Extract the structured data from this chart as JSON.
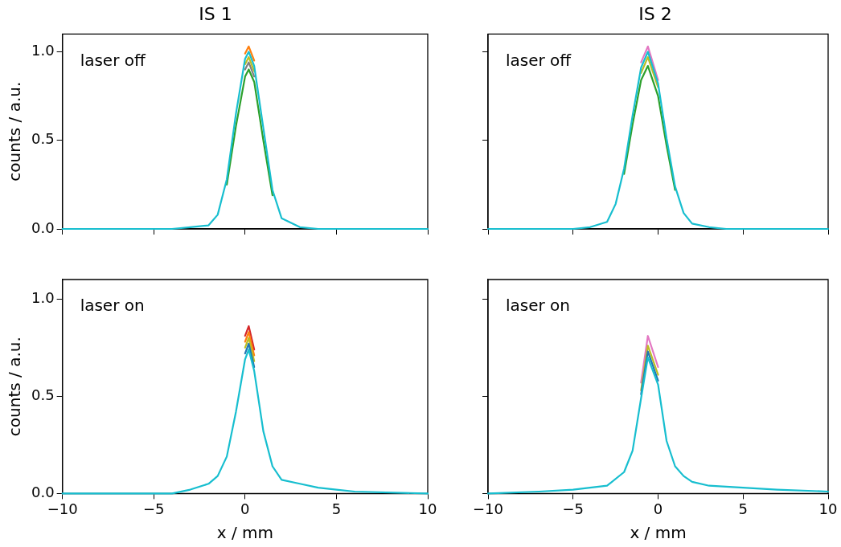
{
  "chart_data": [
    {
      "type": "line",
      "title": "IS 1",
      "ylabel": "counts / a.u.",
      "annotations": [
        "laser off"
      ],
      "xlim": [
        -10,
        10
      ],
      "xticks": [
        -10,
        -5,
        0,
        5,
        10
      ],
      "ylim": [
        0,
        1.1
      ],
      "yticks": [
        {
          "value": 0,
          "label": "0.0"
        },
        {
          "value": 0.5,
          "label": "0.5"
        },
        {
          "value": 1,
          "label": "1.0"
        }
      ],
      "tick_labels": "y",
      "grid": false,
      "legend": false,
      "marker": "none",
      "line_style": "solid",
      "x": [
        -10,
        -4,
        -3,
        -2,
        -1.5,
        -1,
        -0.5,
        0,
        0.2,
        0.5,
        1,
        1.5,
        2,
        3,
        4,
        10
      ],
      "series": [
        {
          "color": "#17becf",
          "values": [
            0,
            0,
            0.01,
            0.02,
            0.08,
            0.28,
            0.65,
            0.96,
            1.0,
            0.92,
            0.57,
            0.22,
            0.06,
            0.01,
            0,
            0
          ]
        },
        {
          "color": "#ff7f0e",
          "values": [
            null,
            null,
            null,
            null,
            null,
            null,
            null,
            0.99,
            1.03,
            0.95,
            null,
            null,
            null,
            null,
            null,
            null
          ]
        },
        {
          "color": "#bcbd22",
          "values": [
            null,
            null,
            null,
            null,
            null,
            null,
            null,
            0.93,
            0.97,
            0.89,
            null,
            null,
            null,
            null,
            null,
            null
          ]
        },
        {
          "color": "#7f7f7f",
          "values": [
            null,
            null,
            null,
            null,
            null,
            null,
            null,
            0.9,
            0.94,
            0.86,
            null,
            null,
            null,
            null,
            null,
            null
          ]
        },
        {
          "color": "#2ca02c",
          "values": [
            null,
            null,
            null,
            null,
            null,
            0.25,
            0.58,
            0.86,
            0.9,
            0.83,
            0.5,
            0.19,
            null,
            null,
            null,
            null
          ]
        }
      ]
    },
    {
      "type": "line",
      "title": "IS 2",
      "annotations": [
        "laser off"
      ],
      "xlim": [
        -10,
        10
      ],
      "xticks": [
        -10,
        -5,
        0,
        5,
        10
      ],
      "ylim": [
        0,
        1.1
      ],
      "yticks": [
        0,
        0.5,
        1
      ],
      "tick_labels": false,
      "grid": false,
      "legend": false,
      "marker": "none",
      "line_style": "solid",
      "x": [
        -10,
        -5,
        -4,
        -3,
        -2.5,
        -2,
        -1.5,
        -1,
        -0.6,
        0,
        0.5,
        1,
        1.5,
        2,
        3,
        4,
        10
      ],
      "series": [
        {
          "color": "#17becf",
          "values": [
            0,
            0,
            0.01,
            0.04,
            0.14,
            0.34,
            0.64,
            0.91,
            1.0,
            0.82,
            0.51,
            0.24,
            0.09,
            0.03,
            0.01,
            0,
            0
          ]
        },
        {
          "color": "#e377c2",
          "values": [
            null,
            null,
            null,
            null,
            null,
            null,
            null,
            0.94,
            1.03,
            0.84,
            null,
            null,
            null,
            null,
            null,
            null,
            null
          ]
        },
        {
          "color": "#bcbd22",
          "values": [
            null,
            null,
            null,
            null,
            null,
            null,
            null,
            0.88,
            0.97,
            0.8,
            null,
            null,
            null,
            null,
            null,
            null,
            null
          ]
        },
        {
          "color": "#2ca02c",
          "values": [
            null,
            null,
            null,
            null,
            null,
            0.31,
            0.59,
            0.84,
            0.92,
            0.75,
            0.47,
            0.22,
            null,
            null,
            null,
            null,
            null
          ]
        }
      ]
    },
    {
      "type": "line",
      "xlabel": "x / mm",
      "ylabel": "counts / a.u.",
      "annotations": [
        "laser on"
      ],
      "xlim": [
        -10,
        10
      ],
      "xticks": [
        -10,
        -5,
        0,
        5,
        10
      ],
      "ylim": [
        0,
        1.1
      ],
      "yticks": [
        {
          "value": 0,
          "label": "0.0"
        },
        {
          "value": 0.5,
          "label": "0.5"
        },
        {
          "value": 1,
          "label": "1.0"
        }
      ],
      "grid": false,
      "legend": false,
      "marker": "none",
      "line_style": "solid",
      "x": [
        -10,
        -5,
        -4,
        -3,
        -2,
        -1.5,
        -1,
        -0.5,
        0,
        0.2,
        0.5,
        1,
        1.5,
        2,
        3,
        4,
        5,
        6,
        10
      ],
      "series": [
        {
          "color": "#17becf",
          "values": [
            0,
            0,
            0,
            0.02,
            0.05,
            0.09,
            0.19,
            0.42,
            0.69,
            0.74,
            0.63,
            0.32,
            0.14,
            0.07,
            0.05,
            0.03,
            0.02,
            0.01,
            0
          ]
        },
        {
          "color": "#1f77b4",
          "values": [
            null,
            null,
            null,
            null,
            null,
            null,
            null,
            null,
            0.72,
            0.77,
            0.65,
            null,
            null,
            null,
            null,
            null,
            null,
            null,
            null
          ]
        },
        {
          "color": "#bcbd22",
          "values": [
            null,
            null,
            null,
            null,
            null,
            null,
            null,
            null,
            0.75,
            0.8,
            0.68,
            null,
            null,
            null,
            null,
            null,
            null,
            null,
            null
          ]
        },
        {
          "color": "#ff7f0e",
          "values": [
            null,
            null,
            null,
            null,
            null,
            null,
            null,
            null,
            0.78,
            0.83,
            0.71,
            null,
            null,
            null,
            null,
            null,
            null,
            null,
            null
          ]
        },
        {
          "color": "#d62728",
          "values": [
            null,
            null,
            null,
            null,
            null,
            null,
            null,
            null,
            0.81,
            0.86,
            0.74,
            null,
            null,
            null,
            null,
            null,
            null,
            null,
            null
          ]
        }
      ]
    },
    {
      "type": "line",
      "xlabel": "x / mm",
      "annotations": [
        "laser on"
      ],
      "xlim": [
        -10,
        10
      ],
      "xticks": [
        -10,
        -5,
        0,
        5,
        10
      ],
      "ylim": [
        0,
        1.1
      ],
      "yticks": [
        0,
        0.5,
        1
      ],
      "tick_labels": "x",
      "grid": false,
      "legend": false,
      "marker": "none",
      "line_style": "solid",
      "x": [
        -10,
        -7,
        -5,
        -3,
        -2,
        -1.5,
        -1,
        -0.6,
        0,
        0.5,
        1,
        1.5,
        2,
        3,
        5,
        7,
        10
      ],
      "series": [
        {
          "color": "#17becf",
          "values": [
            0,
            0.01,
            0.02,
            0.04,
            0.11,
            0.22,
            0.49,
            0.7,
            0.56,
            0.27,
            0.14,
            0.09,
            0.06,
            0.04,
            0.03,
            0.02,
            0.01
          ]
        },
        {
          "color": "#1f77b4",
          "values": [
            null,
            null,
            null,
            null,
            null,
            null,
            0.51,
            0.73,
            0.58,
            null,
            null,
            null,
            null,
            null,
            null,
            null,
            null
          ]
        },
        {
          "color": "#bcbd22",
          "values": [
            null,
            null,
            null,
            null,
            null,
            null,
            0.53,
            0.76,
            0.61,
            null,
            null,
            null,
            null,
            null,
            null,
            null,
            null
          ]
        },
        {
          "color": "#e377c2",
          "values": [
            null,
            null,
            null,
            null,
            null,
            null,
            0.57,
            0.81,
            0.65,
            null,
            null,
            null,
            null,
            null,
            null,
            null,
            null
          ]
        }
      ]
    }
  ]
}
